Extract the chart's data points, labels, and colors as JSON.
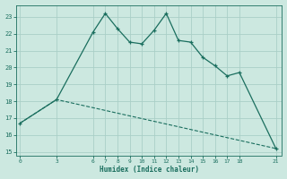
{
  "xlabel": "Humidex (Indice chaleur)",
  "ylabel": "",
  "bg_color": "#cce8e0",
  "line_color": "#1a6e5e",
  "grid_color": "#aacfc7",
  "curve1_x": [
    0,
    3,
    6,
    7,
    8,
    9,
    10,
    11,
    12,
    13,
    14,
    15,
    16,
    17,
    18,
    21
  ],
  "curve1_y": [
    16.7,
    18.1,
    22.1,
    23.2,
    22.3,
    21.5,
    21.4,
    22.2,
    23.2,
    21.6,
    21.5,
    20.6,
    20.1,
    19.5,
    19.7,
    15.2
  ],
  "curve2_x": [
    0,
    3,
    21
  ],
  "curve2_y": [
    16.7,
    18.1,
    15.2
  ],
  "xticks": [
    0,
    3,
    6,
    7,
    8,
    9,
    10,
    11,
    12,
    13,
    14,
    15,
    16,
    17,
    18,
    21
  ],
  "yticks": [
    15,
    16,
    17,
    18,
    19,
    20,
    21,
    22,
    23
  ],
  "xlim": [
    -0.3,
    21.5
  ],
  "ylim": [
    14.8,
    23.7
  ],
  "marker": "+"
}
